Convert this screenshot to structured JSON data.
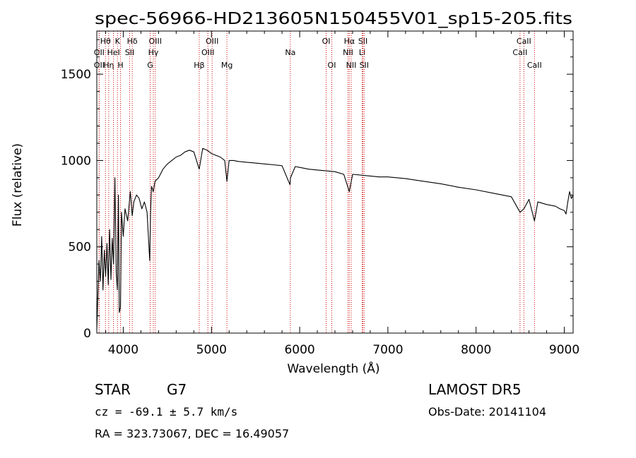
{
  "chart_data": {
    "type": "line",
    "title": "spec-56966-HD213605N150455V01_sp15-205.fits",
    "xlabel": "Wavelength (Å)",
    "ylabel": "Flux (relative)",
    "xlim": [
      3700,
      9100
    ],
    "ylim": [
      0,
      1750
    ],
    "x_ticks": [
      4000,
      5000,
      6000,
      7000,
      8000,
      9000
    ],
    "x_tick_labels": [
      "4000",
      "5000",
      "6000",
      "7000",
      "8000",
      "9000"
    ],
    "y_ticks": [
      0,
      500,
      1000,
      1500
    ],
    "y_tick_labels": [
      "0",
      "500",
      "1000",
      "1500"
    ],
    "grid": false,
    "line_color": "#000000",
    "marker_color": "#cc0000",
    "series": [
      {
        "x": [
          3700,
          3710,
          3725,
          3740,
          3755,
          3770,
          3785,
          3800,
          3815,
          3830,
          3845,
          3860,
          3875,
          3890,
          3905,
          3920,
          3933,
          3945,
          3955,
          3968,
          3980,
          4000,
          4020,
          4050,
          4080,
          4101,
          4120,
          4150,
          4180,
          4210,
          4240,
          4270,
          4300,
          4310,
          4320,
          4340,
          4360,
          4400,
          4450,
          4500,
          4550,
          4600,
          4650,
          4700,
          4750,
          4800,
          4861,
          4900,
          4950,
          5000,
          5050,
          5100,
          5150,
          5175,
          5200,
          5250,
          5300,
          5400,
          5500,
          5600,
          5700,
          5800,
          5890,
          5896,
          5950,
          6000,
          6100,
          6200,
          6300,
          6400,
          6500,
          6563,
          6600,
          6700,
          6800,
          6900,
          7000,
          7200,
          7400,
          7600,
          7800,
          8000,
          8200,
          8400,
          8498,
          8542,
          8600,
          8662,
          8700,
          8800,
          8900,
          8950,
          9000,
          9020,
          9040,
          9060,
          9080,
          9100
        ],
        "y": [
          20,
          180,
          420,
          300,
          560,
          250,
          480,
          330,
          520,
          280,
          600,
          310,
          550,
          400,
          900,
          350,
          250,
          800,
          120,
          150,
          700,
          560,
          720,
          650,
          820,
          680,
          760,
          800,
          780,
          720,
          760,
          700,
          420,
          700,
          850,
          820,
          880,
          900,
          950,
          980,
          1000,
          1020,
          1030,
          1050,
          1060,
          1050,
          950,
          1070,
          1060,
          1040,
          1030,
          1020,
          1000,
          880,
          1000,
          1000,
          995,
          990,
          985,
          980,
          975,
          970,
          860,
          900,
          965,
          960,
          950,
          945,
          940,
          935,
          920,
          820,
          920,
          915,
          910,
          905,
          905,
          895,
          880,
          865,
          845,
          830,
          810,
          790,
          700,
          720,
          775,
          650,
          760,
          745,
          735,
          720,
          710,
          690,
          760,
          820,
          780,
          800
        ]
      }
    ],
    "line_markers": [
      {
        "name": "Hθ",
        "x": 3798,
        "row": 1
      },
      {
        "name": "OII",
        "x": 3727,
        "row": 2
      },
      {
        "name": "OII",
        "x": 3727,
        "row": 3
      },
      {
        "name": "Hη",
        "x": 3835,
        "row": 3
      },
      {
        "name": "HeI",
        "x": 3889,
        "row": 2
      },
      {
        "name": "K",
        "x": 3934,
        "row": 1
      },
      {
        "name": "H",
        "x": 3969,
        "row": 3
      },
      {
        "name": "Hδ",
        "x": 4102,
        "row": 1
      },
      {
        "name": "SII",
        "x": 4072,
        "row": 2
      },
      {
        "name": "OIII",
        "x": 4363,
        "row": 1
      },
      {
        "name": "Hγ",
        "x": 4341,
        "row": 2
      },
      {
        "name": "G",
        "x": 4305,
        "row": 3
      },
      {
        "name": "Hβ",
        "x": 4861,
        "row": 3
      },
      {
        "name": "OIII",
        "x": 5007,
        "row": 1
      },
      {
        "name": "OIII",
        "x": 4959,
        "row": 2
      },
      {
        "name": "Mg",
        "x": 5175,
        "row": 3
      },
      {
        "name": "Na",
        "x": 5894,
        "row": 2
      },
      {
        "name": "OI",
        "x": 6300,
        "row": 1
      },
      {
        "name": "OI",
        "x": 6364,
        "row": 3
      },
      {
        "name": "Hα",
        "x": 6563,
        "row": 1
      },
      {
        "name": "NII",
        "x": 6548,
        "row": 2
      },
      {
        "name": "NII",
        "x": 6584,
        "row": 3
      },
      {
        "name": "SII",
        "x": 6717,
        "row": 1
      },
      {
        "name": "Li",
        "x": 6708,
        "row": 2
      },
      {
        "name": "SII",
        "x": 6731,
        "row": 3
      },
      {
        "name": "CaII",
        "x": 8542,
        "row": 1
      },
      {
        "name": "CaII",
        "x": 8498,
        "row": 2
      },
      {
        "name": "CaII",
        "x": 8662,
        "row": 3
      }
    ]
  },
  "info": {
    "object_class": "STAR",
    "subclass": "G7",
    "survey": "LAMOST DR5",
    "cz": "cz = -69.1 ± 5.7 km/s",
    "obs_date": "Obs-Date: 20141104",
    "coords": "RA = 323.73067, DEC =  16.49057"
  }
}
